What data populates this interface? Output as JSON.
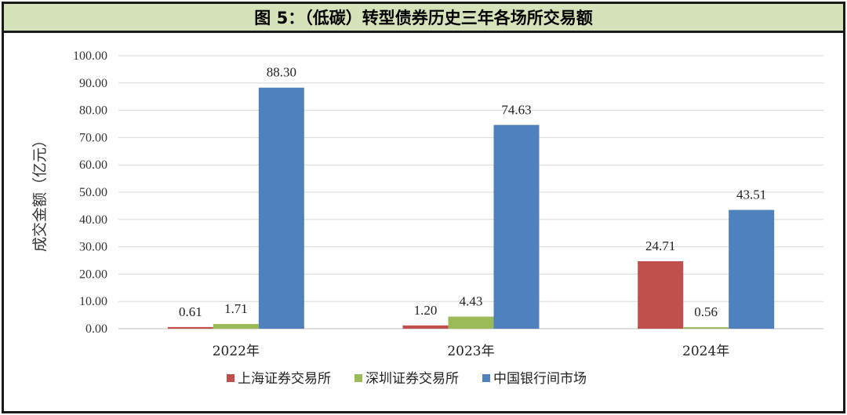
{
  "title": "图 5：（低碳）转型债券历史三年各场所交易额",
  "chart_data": {
    "type": "bar",
    "title": "图 5：（低碳）转型债券历史三年各场所交易额",
    "ylabel": "成交金额（亿元）",
    "xlabel": "",
    "categories": [
      "2022年",
      "2023年",
      "2024年"
    ],
    "ylim": [
      0,
      100
    ],
    "yticks": [
      "0.00",
      "10.00",
      "20.00",
      "30.00",
      "40.00",
      "50.00",
      "60.00",
      "70.00",
      "80.00",
      "90.00",
      "100.00"
    ],
    "grid": true,
    "legend_position": "bottom",
    "series": [
      {
        "name": "上海证券交易所",
        "color": "#c0504d",
        "values": [
          0.61,
          1.2,
          24.71
        ],
        "labels": [
          "0.61",
          "1.20",
          "24.71"
        ]
      },
      {
        "name": "深圳证券交易所",
        "color": "#9bbb59",
        "values": [
          1.71,
          4.43,
          0.56
        ],
        "labels": [
          "1.71",
          "4.43",
          "0.56"
        ]
      },
      {
        "name": "中国银行间市场",
        "color": "#4f81bd",
        "values": [
          88.3,
          74.63,
          43.51
        ],
        "labels": [
          "88.30",
          "74.63",
          "43.51"
        ]
      }
    ]
  }
}
